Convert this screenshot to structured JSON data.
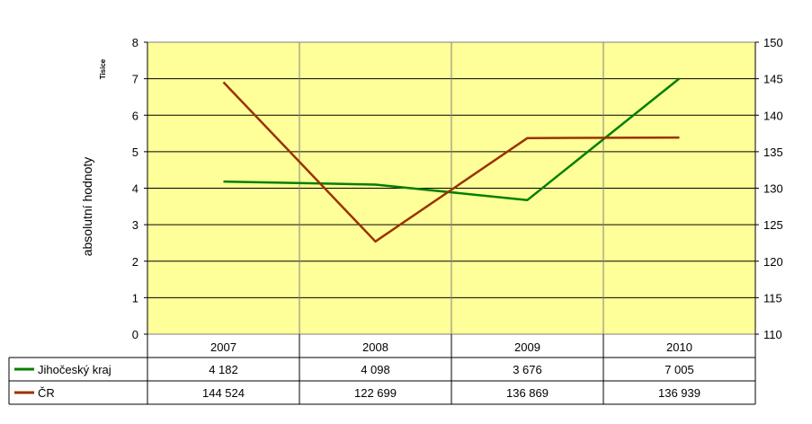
{
  "chart_data": {
    "type": "line",
    "categories": [
      "2007",
      "2008",
      "2009",
      "2010"
    ],
    "left_axis": {
      "label": "absolutní hodnoty",
      "unit_label": "Tisíce",
      "range": [
        0,
        8
      ],
      "ticks": [
        "0",
        "1",
        "2",
        "3",
        "4",
        "5",
        "6",
        "7",
        "8"
      ]
    },
    "right_axis": {
      "range": [
        110,
        150
      ],
      "ticks": [
        "110",
        "115",
        "120",
        "125",
        "130",
        "135",
        "140",
        "145",
        "150"
      ]
    },
    "series": [
      {
        "name": "Jihočeský kraj",
        "axis": "left",
        "color": "#008000",
        "values": [
          4.182,
          4.098,
          3.676,
          7.005
        ],
        "table_values": [
          "4 182",
          "4 098",
          "3 676",
          "7 005"
        ]
      },
      {
        "name": "ČR",
        "axis": "right",
        "color": "#993300",
        "values": [
          144.524,
          122.699,
          136.869,
          136.939
        ],
        "table_values": [
          "144 524",
          "122 699",
          "136 869",
          "136 939"
        ]
      }
    ],
    "plot_background": "#ffff99",
    "grid": true,
    "legend": "data-table"
  }
}
